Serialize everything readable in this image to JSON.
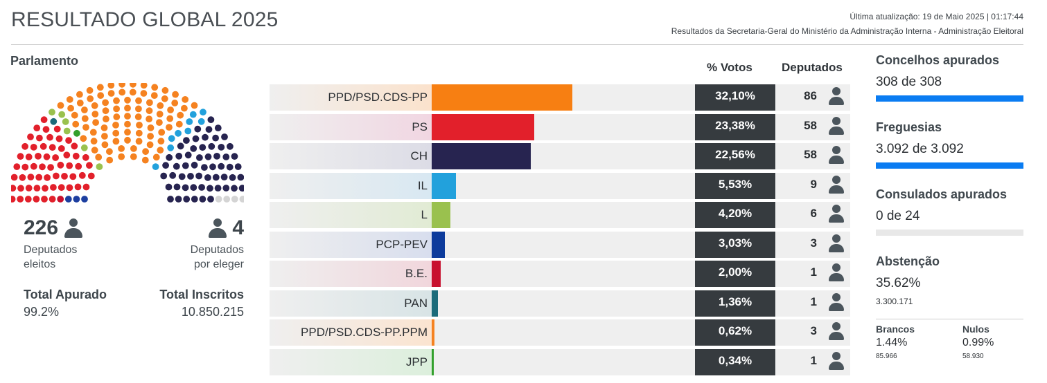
{
  "header": {
    "title": "RESULTADO GLOBAL 2025",
    "last_update": "Última atualização: 19 de Maio 2025 | 01:17:44",
    "source": "Resultados da Secretaria-Geral do Ministério da Administração Interna - Administração Eleitoral"
  },
  "parliament": {
    "section_title": "Parlamento",
    "elected_count": "226",
    "elected_label_1": "Deputados",
    "elected_label_2": "eleitos",
    "pending_count": "4",
    "pending_label_1": "Deputados",
    "pending_label_2": "por eleger",
    "total_apurado_label": "Total Apurado",
    "total_apurado_value": "99.2%",
    "total_inscritos_label": "Total Inscritos",
    "total_inscritos_value": "10.850.215",
    "seat_groups_left_to_right": [
      {
        "party": "PCP-PEV",
        "seats": 3,
        "color": "#1d3fa0"
      },
      {
        "party": "B.E.",
        "seats": 1,
        "color": "#c8102e"
      },
      {
        "party": "PS",
        "seats": 58,
        "color": "#e2202b"
      },
      {
        "party": "PAN",
        "seats": 1,
        "color": "#1b6b7a"
      },
      {
        "party": "L",
        "seats": 6,
        "color": "#9ac14e"
      },
      {
        "party": "JPP",
        "seats": 1,
        "color": "#33a02c"
      },
      {
        "party": "PPD/PSD.CDS-PP",
        "seats": 86,
        "color": "#f58220"
      },
      {
        "party": "PPD/PSD.CDS-PP.PPM",
        "seats": 3,
        "color": "#f58220"
      },
      {
        "party": "IL",
        "seats": 9,
        "color": "#22a1dc"
      },
      {
        "party": "CH",
        "seats": 58,
        "color": "#272450"
      },
      {
        "party": "por eleger",
        "seats": 4,
        "color": "#d4d4d4"
      }
    ]
  },
  "columns": {
    "votes": "% Votos",
    "deputies": "Deputados"
  },
  "chart_data": {
    "type": "bar",
    "orientation": "horizontal",
    "categories": [
      "PPD/PSD.CDS-PP",
      "PS",
      "CH",
      "IL",
      "L",
      "PCP-PEV",
      "B.E.",
      "PAN",
      "PPD/PSD.CDS-PP.PPM",
      "JPP"
    ],
    "values": [
      32.1,
      23.38,
      22.56,
      5.53,
      4.2,
      3.03,
      2.0,
      1.36,
      0.62,
      0.34
    ],
    "value_labels": [
      "32,10%",
      "23,38%",
      "22,56%",
      "5,53%",
      "4,20%",
      "3,03%",
      "2,00%",
      "1,36%",
      "0,62%",
      "0,34%"
    ],
    "deputies": [
      "86",
      "58",
      "58",
      "9",
      "6",
      "3",
      "1",
      "1",
      "3",
      "1"
    ],
    "colors": [
      "#f77f12",
      "#e2202b",
      "#272450",
      "#22a1dc",
      "#9ac14e",
      "#0d3b9c",
      "#c8102e",
      "#1b6b7a",
      "#f58220",
      "#33a02c"
    ],
    "tints": [
      "#fbe2cc",
      "#f1d6e2",
      "#dcdce6",
      "#d8e8f2",
      "#e1ebd4",
      "#d8deee",
      "#f1d6dc",
      "#d8e4e6",
      "#fbe4d0",
      "#dcefdc"
    ],
    "xlim": [
      0,
      100
    ]
  },
  "sidebar": {
    "concelhos_label": "Concelhos apurados",
    "concelhos_value": "308 de 308",
    "concelhos_progress": 1.0,
    "freguesias_label": "Freguesias",
    "freguesias_value": "3.092 de 3.092",
    "freguesias_progress": 1.0,
    "consulados_label": "Consulados apurados",
    "consulados_value": "0 de 24",
    "consulados_progress": 0.0,
    "abstencao_label": "Abstenção",
    "abstencao_pct": "35.62%",
    "abstencao_count": "3.300.171",
    "brancos_label": "Brancos",
    "brancos_pct": "1.44%",
    "brancos_count": "85.966",
    "nulos_label": "Nulos",
    "nulos_pct": "0.99%",
    "nulos_count": "58.930",
    "accent_color": "#0a7cf2"
  }
}
